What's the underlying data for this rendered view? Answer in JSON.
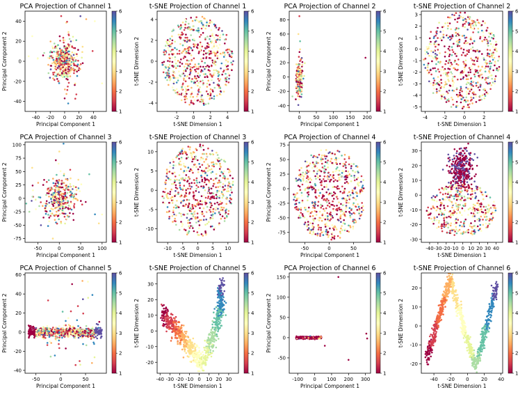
{
  "colormap": [
    "#9e0142",
    "#d53e4f",
    "#f46d43",
    "#fdae61",
    "#fee08b",
    "#ffffbf",
    "#e6f598",
    "#abdda4",
    "#66c2a5",
    "#3288bd",
    "#5e4fa2"
  ],
  "colorbar_ticks": [
    "1",
    "2",
    "3",
    "4",
    "5",
    "6"
  ],
  "chart_data": [
    {
      "type": "scatter",
      "title": "PCA Projection of Channel 1",
      "xlabel": "Principal Component 1",
      "ylabel": "Principal Component 2",
      "xlim": [
        -55,
        58
      ],
      "ylim": [
        -50,
        50
      ],
      "xticks": [
        -40,
        -20,
        0,
        20,
        40
      ],
      "yticks": [
        -40,
        -20,
        0,
        20,
        40
      ],
      "pattern": "blob",
      "cx": 0,
      "cy": 0,
      "sx": 9,
      "sy": 9,
      "n": 420,
      "outliers": [
        [
          -50,
          5
        ],
        [
          -45,
          25
        ],
        [
          52,
          -22
        ],
        [
          42,
          40
        ],
        [
          22,
          45
        ],
        [
          30,
          42
        ],
        [
          5,
          -42
        ]
      ]
    },
    {
      "type": "scatter",
      "title": "t-SNE Projection of Channel 1",
      "xlabel": "t-SNE Dimension 1",
      "ylabel": "t-SNE Dimension 2",
      "xlim": [
        -4.3,
        5.3
      ],
      "ylim": [
        -4.8,
        4.8
      ],
      "xticks": [
        -2,
        0,
        2,
        4
      ],
      "yticks": [
        -4,
        -2,
        0,
        2,
        4
      ],
      "pattern": "disk",
      "cx": 0.5,
      "cy": 0,
      "rx": 4.2,
      "ry": 4.3,
      "n": 600
    },
    {
      "type": "scatter",
      "title": "PCA Projection of Channel 2",
      "xlabel": "Principal Component 1",
      "ylabel": "Principal Component 2",
      "xlim": [
        -30,
        210
      ],
      "ylim": [
        -48,
        92
      ],
      "xticks": [
        0,
        50,
        100,
        150,
        200
      ],
      "yticks": [
        -40,
        -20,
        0,
        20,
        40,
        60,
        80
      ],
      "pattern": "blob",
      "cx": 0,
      "cy": -2,
      "sx": 4,
      "sy": 11,
      "n": 260,
      "outliers": [
        [
          0,
          85
        ],
        [
          195,
          27
        ],
        [
          -3,
          60
        ],
        [
          2,
          50
        ]
      ]
    },
    {
      "type": "scatter",
      "title": "t-SNE Projection of Channel 2",
      "xlabel": "t-SNE Dimension 1",
      "ylabel": "t-SNE Dimension 2",
      "xlim": [
        -4.4,
        3.9
      ],
      "ylim": [
        -5.4,
        3.3
      ],
      "xticks": [
        -4,
        -2,
        0,
        2
      ],
      "yticks": [
        -5,
        -4,
        -3,
        -2,
        -1,
        0,
        1,
        2,
        3
      ],
      "pattern": "disk",
      "cx": -0.3,
      "cy": -1,
      "rx": 3.9,
      "ry": 4.2,
      "n": 620
    },
    {
      "type": "scatter",
      "title": "PCA Projection of Channel 3",
      "xlabel": "Principal Component 1",
      "ylabel": "Principal Component 2",
      "xlim": [
        -80,
        110
      ],
      "ylim": [
        -82,
        105
      ],
      "xticks": [
        -50,
        0,
        50,
        100
      ],
      "yticks": [
        -75,
        -50,
        -25,
        0,
        25,
        50,
        75,
        100
      ],
      "pattern": "blob",
      "cx": 0,
      "cy": 0,
      "sx": 18,
      "sy": 18,
      "n": 360,
      "outliers": [
        [
          100,
          -30
        ],
        [
          -70,
          -25
        ],
        [
          10,
          102
        ],
        [
          -15,
          -75
        ],
        [
          70,
          45
        ]
      ]
    },
    {
      "type": "scatter",
      "title": "t-SNE Projection of Channel 3",
      "xlabel": "t-SNE Dimension 1",
      "ylabel": "t-SNE Dimension 2",
      "xlim": [
        -13.5,
        13.5
      ],
      "ylim": [
        -13.5,
        12.5
      ],
      "xticks": [
        -10,
        -5,
        0,
        5,
        10
      ],
      "yticks": [
        -10,
        -5,
        0,
        5,
        10
      ],
      "pattern": "disk",
      "cx": 0,
      "cy": 0,
      "rx": 12,
      "ry": 12,
      "n": 600
    },
    {
      "type": "scatter",
      "title": "PCA Projection of Channel 4",
      "xlabel": "Principal Component 1",
      "ylabel": "Principal Component 2",
      "xlim": [
        -82,
        85
      ],
      "ylim": [
        -92,
        80
      ],
      "xticks": [
        -50,
        0,
        50
      ],
      "yticks": [
        -75,
        -50,
        -25,
        0,
        25,
        50,
        75
      ],
      "pattern": "disk",
      "cx": 0,
      "cy": -10,
      "rx": 75,
      "ry": 78,
      "n": 620
    },
    {
      "type": "scatter",
      "title": "t-SNE Projection of Channel 4",
      "xlabel": "t-SNE Dimension 1",
      "ylabel": "t-SNE Dimension 2",
      "xlim": [
        -50,
        48
      ],
      "ylim": [
        -32,
        36
      ],
      "xticks": [
        -40,
        -30,
        -20,
        -10,
        0,
        10,
        20,
        30,
        40
      ],
      "yticks": [
        -30,
        -20,
        -10,
        0,
        10,
        20,
        30
      ],
      "pattern": "clusters",
      "n": 720
    },
    {
      "type": "scatter",
      "title": "PCA Projection of Channel 5",
      "xlabel": "Principal Component 1",
      "ylabel": "Principal Component 2",
      "xlim": [
        -72,
        92
      ],
      "ylim": [
        -43,
        62
      ],
      "xticks": [
        -50,
        0,
        50
      ],
      "yticks": [
        -40,
        -20,
        0,
        20,
        40,
        60
      ],
      "pattern": "band",
      "n": 700
    },
    {
      "type": "scatter",
      "title": "t-SNE Projection of Channel 5",
      "xlabel": "t-SNE Dimension 1",
      "ylabel": "t-SNE Dimension 2",
      "xlim": [
        -43,
        40
      ],
      "ylim": [
        -27,
        37
      ],
      "xticks": [
        -40,
        -30,
        -20,
        -10,
        0,
        10,
        20,
        30
      ],
      "yticks": [
        -20,
        -10,
        0,
        10,
        20,
        30
      ],
      "pattern": "curve5",
      "n": 900
    },
    {
      "type": "scatter",
      "title": "PCA Projection of Channel 6",
      "xlabel": "Principal Component 1",
      "ylabel": "Principal Component 2",
      "xlim": [
        -150,
        330
      ],
      "ylim": [
        -88,
        160
      ],
      "xticks": [
        -100,
        0,
        100,
        200,
        300
      ],
      "yticks": [
        -50,
        0,
        50,
        100,
        150
      ],
      "pattern": "line6",
      "n": 300,
      "outliers": [
        [
          140,
          150
        ],
        [
          305,
          10
        ],
        [
          310,
          -2
        ],
        [
          200,
          -55
        ],
        [
          60,
          -20
        ]
      ]
    },
    {
      "type": "scatter",
      "title": "t-SNE Projection of Channel 6",
      "xlabel": "t-SNE Dimension 1",
      "ylabel": "t-SNE Dimension 2",
      "xlim": [
        -55,
        42
      ],
      "ylim": [
        -25,
        28
      ],
      "xticks": [
        -40,
        -20,
        0,
        20,
        40
      ],
      "yticks": [
        -20,
        -10,
        0,
        10,
        20
      ],
      "pattern": "curve6",
      "n": 950
    }
  ]
}
